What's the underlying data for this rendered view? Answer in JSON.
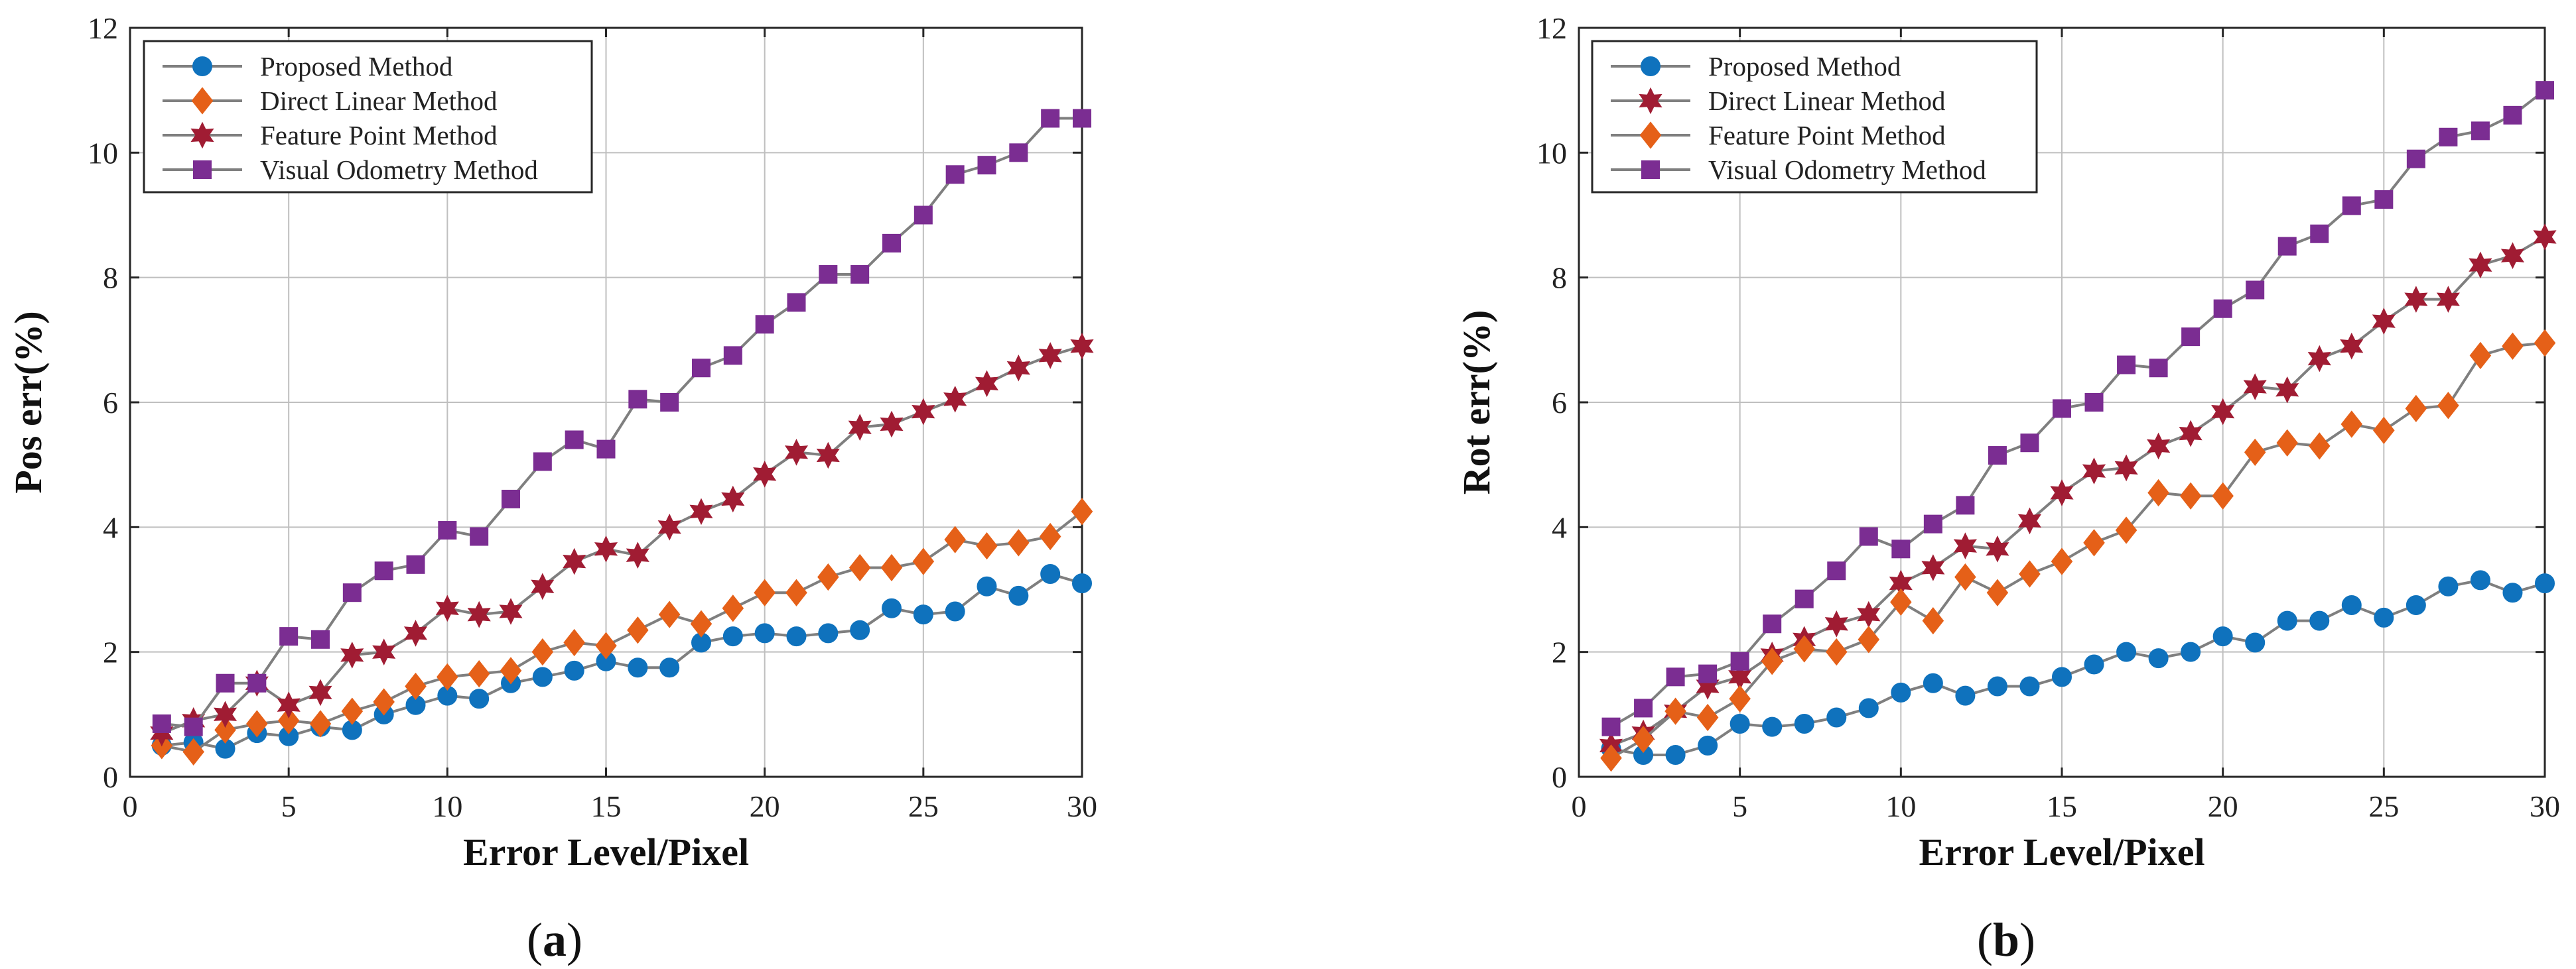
{
  "chart_data": [
    {
      "id": "a",
      "type": "line",
      "caption": "a",
      "xlabel": "Error Level/Pixel",
      "ylabel": "Pos err(%)",
      "xlim": [
        0,
        30
      ],
      "ylim": [
        0,
        12
      ],
      "xticks": [
        "0",
        "5",
        "10",
        "15",
        "20",
        "25",
        "30"
      ],
      "yticks": [
        "0",
        "2",
        "4",
        "6",
        "8",
        "10",
        "12"
      ],
      "grid": true,
      "legend_position": "top-left",
      "x": [
        1,
        2,
        3,
        4,
        5,
        6,
        7,
        8,
        9,
        10,
        11,
        12,
        13,
        14,
        15,
        16,
        17,
        18,
        19,
        20,
        21,
        22,
        23,
        24,
        25,
        26,
        27,
        28,
        29,
        30
      ],
      "series": [
        {
          "name": "Proposed Method",
          "color": "#0f72bd",
          "marker": "circle",
          "values": [
            0.5,
            0.55,
            0.45,
            0.7,
            0.65,
            0.8,
            0.75,
            1.0,
            1.15,
            1.3,
            1.25,
            1.5,
            1.6,
            1.7,
            1.85,
            1.75,
            1.75,
            2.15,
            2.25,
            2.3,
            2.25,
            2.3,
            2.35,
            2.7,
            2.6,
            2.65,
            3.05,
            2.9,
            3.25,
            3.1
          ]
        },
        {
          "name": "Direct Linear Method",
          "color": "#e56018",
          "marker": "diamond",
          "values": [
            0.5,
            0.4,
            0.75,
            0.85,
            0.9,
            0.85,
            1.05,
            1.2,
            1.45,
            1.6,
            1.65,
            1.7,
            2.0,
            2.15,
            2.1,
            2.35,
            2.6,
            2.45,
            2.7,
            2.95,
            2.95,
            3.2,
            3.35,
            3.35,
            3.45,
            3.8,
            3.7,
            3.75,
            3.85,
            4.25
          ]
        },
        {
          "name": "Feature Point Method",
          "color": "#a01c33",
          "marker": "hexagram",
          "values": [
            0.7,
            0.9,
            1.0,
            1.5,
            1.15,
            1.35,
            1.95,
            2.0,
            2.3,
            2.7,
            2.6,
            2.65,
            3.05,
            3.45,
            3.65,
            3.55,
            4.0,
            4.25,
            4.45,
            4.85,
            5.2,
            5.15,
            5.6,
            5.65,
            5.85,
            6.05,
            6.3,
            6.55,
            6.75,
            6.9
          ]
        },
        {
          "name": "Visual Odometry Method",
          "color": "#7b2d92",
          "marker": "square",
          "values": [
            0.85,
            0.8,
            1.5,
            1.5,
            2.25,
            2.2,
            2.95,
            3.3,
            3.4,
            3.95,
            3.85,
            4.45,
            5.05,
            5.4,
            5.25,
            6.05,
            6.0,
            6.55,
            6.75,
            7.25,
            7.6,
            8.05,
            8.05,
            8.55,
            9.0,
            9.65,
            9.8,
            10.0,
            10.55,
            10.55
          ]
        }
      ]
    },
    {
      "id": "b",
      "type": "line",
      "caption": "b",
      "xlabel": "Error Level/Pixel",
      "ylabel": "Rot err(%)",
      "xlim": [
        0,
        30
      ],
      "ylim": [
        0,
        12
      ],
      "xticks": [
        "0",
        "5",
        "10",
        "15",
        "20",
        "25",
        "30"
      ],
      "yticks": [
        "0",
        "2",
        "4",
        "6",
        "8",
        "10",
        "12"
      ],
      "grid": true,
      "legend_position": "top-left",
      "x": [
        1,
        2,
        3,
        4,
        5,
        6,
        7,
        8,
        9,
        10,
        11,
        12,
        13,
        14,
        15,
        16,
        17,
        18,
        19,
        20,
        21,
        22,
        23,
        24,
        25,
        26,
        27,
        28,
        29,
        30
      ],
      "series": [
        {
          "name": "Proposed Method",
          "color": "#0f72bd",
          "marker": "circle",
          "values": [
            0.45,
            0.35,
            0.35,
            0.5,
            0.85,
            0.8,
            0.85,
            0.95,
            1.1,
            1.35,
            1.5,
            1.3,
            1.45,
            1.45,
            1.6,
            1.8,
            2.0,
            1.9,
            2.0,
            2.25,
            2.15,
            2.5,
            2.5,
            2.75,
            2.55,
            2.75,
            3.05,
            3.15,
            2.95,
            3.1
          ]
        },
        {
          "name": "Direct Linear Method",
          "color": "#a01c33",
          "marker": "hexagram",
          "values": [
            0.5,
            0.7,
            1.05,
            1.45,
            1.6,
            1.95,
            2.2,
            2.45,
            2.6,
            3.1,
            3.35,
            3.7,
            3.65,
            4.1,
            4.55,
            4.9,
            4.95,
            5.3,
            5.5,
            5.85,
            6.25,
            6.2,
            6.7,
            6.9,
            7.3,
            7.65,
            7.65,
            8.2,
            8.35,
            8.65
          ]
        },
        {
          "name": "Feature Point Method",
          "color": "#e56018",
          "marker": "diamond",
          "values": [
            0.3,
            0.6,
            1.05,
            0.95,
            1.25,
            1.85,
            2.05,
            2.0,
            2.2,
            2.8,
            2.5,
            3.2,
            2.95,
            3.25,
            3.45,
            3.75,
            3.95,
            4.55,
            4.5,
            4.5,
            5.2,
            5.35,
            5.3,
            5.65,
            5.55,
            5.9,
            5.95,
            6.75,
            6.9,
            6.95
          ]
        },
        {
          "name": "Visual Odometry Method",
          "color": "#7b2d92",
          "marker": "square",
          "values": [
            0.8,
            1.1,
            1.6,
            1.65,
            1.85,
            2.45,
            2.85,
            3.3,
            3.85,
            3.65,
            4.05,
            4.35,
            5.15,
            5.35,
            5.9,
            6.0,
            6.6,
            6.55,
            7.05,
            7.5,
            7.8,
            8.5,
            8.7,
            9.15,
            9.25,
            9.9,
            10.25,
            10.35,
            10.6,
            11.0
          ]
        }
      ]
    }
  ]
}
